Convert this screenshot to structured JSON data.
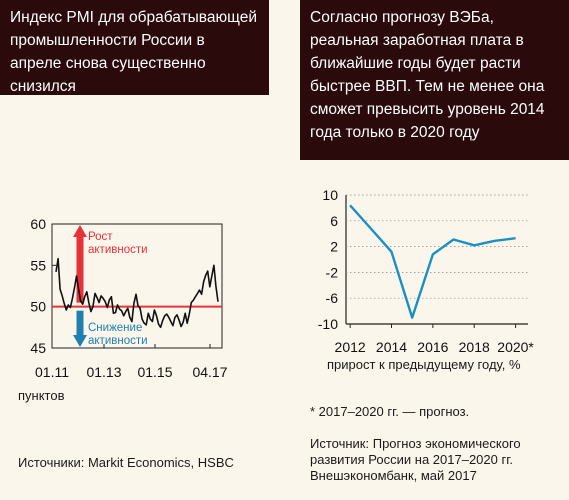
{
  "left_panel": {
    "title": "Индекс PMI для обрабатывающей промышленности России в апреле снова существенно снизился",
    "unit": "пунктов",
    "source": "Источники: Markit Economics, HSBC",
    "up_label": [
      "Рост",
      "активности"
    ],
    "down_label": [
      "Снижение",
      "активности"
    ],
    "colors": {
      "up": "#e8323a",
      "down": "#1f7fb0",
      "threshold": "#e8323a",
      "line": "#111111"
    }
  },
  "right_panel": {
    "title": "Согласно прогнозу ВЭБа, реальная заработная плата в ближайшие годы будет расти быстрее ВВП. Тем не менее она сможет превысить уровень 2014 года только в 2020 году",
    "unit": "прирост к предыдущему году, %",
    "footnote": "* 2017–2020 гг. — прогноз.",
    "source": "Источник: Прогноз экономического развития России на 2017–2020 гг. Внешэкономбанк, май 2017",
    "colors": {
      "line": "#1a8fc6"
    }
  },
  "chart_data": [
    {
      "type": "line",
      "ylim": [
        45,
        60
      ],
      "yticks": [
        45,
        50,
        55,
        60
      ],
      "xticks": [
        "01.11",
        "01.13",
        "01.15",
        "04.17"
      ],
      "threshold": 50,
      "series": [
        {
          "values": [
            54.2,
            55.8,
            52.1,
            51.3,
            50.4,
            49.6,
            50.2,
            49.9,
            51.0,
            52.3,
            53.7,
            52.1,
            50.7,
            50.3,
            51.2,
            51.8,
            50.5,
            49.4,
            50.0,
            51.6,
            51.1,
            50.5,
            51.3,
            51.0,
            50.6,
            49.9,
            50.8,
            51.2,
            49.2,
            49.3,
            50.2,
            49.7,
            49.5,
            48.9,
            49.4,
            49.8,
            48.7,
            48.2,
            50.4,
            51.5,
            50.1,
            49.8,
            48.5,
            48.0,
            47.8,
            49.2,
            48.5,
            48.2,
            49.6,
            48.9,
            47.9,
            47.5,
            48.3,
            48.9,
            49.1,
            48.7,
            48.2,
            47.7,
            48.7,
            49.0,
            48.4,
            47.6,
            48.1,
            49.2,
            48.0,
            49.1,
            50.5,
            50.8,
            51.2,
            51.6,
            52.0,
            51.5,
            53.0,
            53.8,
            54.3,
            52.4,
            53.7,
            55.0,
            52.5,
            50.6
          ]
        }
      ]
    },
    {
      "type": "line",
      "ylim": [
        -10,
        10
      ],
      "yticks": [
        10,
        6,
        2,
        -2,
        -6,
        -10
      ],
      "xticks": [
        "2012",
        "2014",
        "2016",
        "2018",
        "2020*"
      ],
      "x": [
        2012,
        2013,
        2014,
        2015,
        2016,
        2017,
        2018,
        2019,
        2020
      ],
      "series": [
        {
          "values": [
            8.4,
            4.8,
            1.2,
            -9.0,
            0.8,
            3.1,
            2.2,
            2.9,
            3.3
          ]
        }
      ]
    }
  ]
}
